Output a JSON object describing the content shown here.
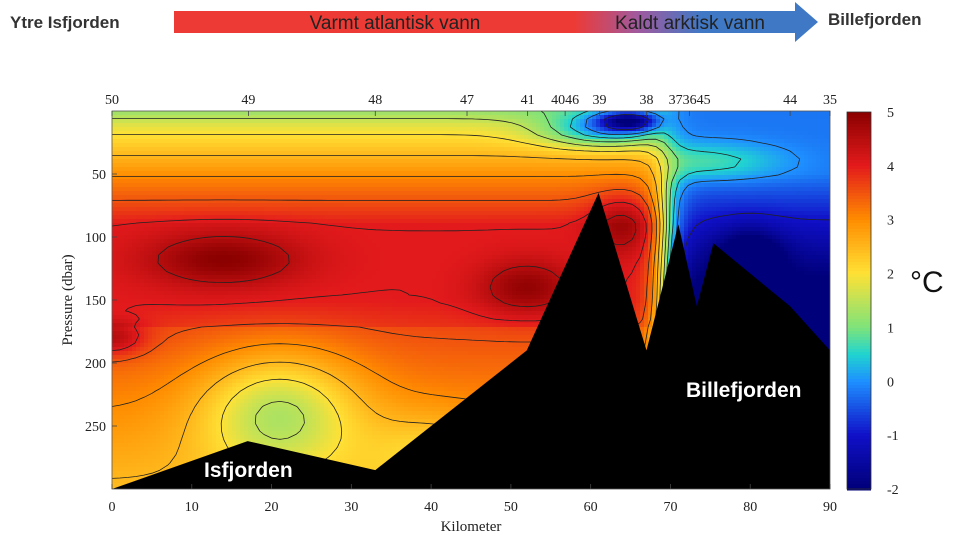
{
  "header": {
    "left_label": "Ytre Isfjorden",
    "right_label": "Billefjorden",
    "arrow_warm_label": "Varmt atlantisk vann",
    "arrow_cold_label": "Kaldt arktisk vann",
    "colors": {
      "warm": "#ee3a34",
      "cold": "#3f79c6"
    }
  },
  "overlays": {
    "left_basin_label": "Isfjorden",
    "right_basin_label": "Billefjorden"
  },
  "colorbar": {
    "unit_label": "°C",
    "ticks": [
      "5",
      "4",
      "3",
      "2",
      "1",
      "0",
      "-1",
      "-2"
    ],
    "stops": [
      {
        "value": 5,
        "color": "#8b0000"
      },
      {
        "value": 4,
        "color": "#e31a1c"
      },
      {
        "value": 3,
        "color": "#ff8c00"
      },
      {
        "value": 2,
        "color": "#ffe135"
      },
      {
        "value": 1,
        "color": "#7fe37a"
      },
      {
        "value": 0.5,
        "color": "#20d4d0"
      },
      {
        "value": 0,
        "color": "#1e90ff"
      },
      {
        "value": -1,
        "color": "#1010c8"
      },
      {
        "value": -2,
        "color": "#00007a"
      }
    ]
  },
  "chart_data": {
    "type": "heatmap",
    "title": "",
    "xlabel": "Kilometer",
    "ylabel": "Pressure (dbar)",
    "xlim": [
      0,
      90
    ],
    "ylim": [
      0,
      300
    ],
    "x_ticks": [
      0,
      10,
      20,
      30,
      40,
      50,
      60,
      70,
      80,
      90
    ],
    "y_ticks": [
      50,
      100,
      150,
      200,
      250
    ],
    "color_range": [
      -2,
      5
    ],
    "station_labels": [
      {
        "label": "50",
        "km": 0
      },
      {
        "label": "49",
        "km": 17.1
      },
      {
        "label": "48",
        "km": 33.0
      },
      {
        "label": "47",
        "km": 44.5
      },
      {
        "label": "41",
        "km": 52.1
      },
      {
        "label": "4046",
        "km": 56.8
      },
      {
        "label": "39",
        "km": 61.1
      },
      {
        "label": "38",
        "km": 67.0
      },
      {
        "label": "373645",
        "km": 72.4
      },
      {
        "label": "44",
        "km": 85.0
      },
      {
        "label": "35",
        "km": 90.0
      }
    ],
    "bathymetry": [
      [
        0,
        300
      ],
      [
        17,
        262
      ],
      [
        33,
        285
      ],
      [
        52,
        190
      ],
      [
        61,
        65
      ],
      [
        67,
        190
      ],
      [
        71,
        90
      ],
      [
        73.3,
        155
      ],
      [
        75.4,
        105
      ],
      [
        85,
        155
      ],
      [
        90,
        190
      ]
    ],
    "contour_levels": [
      -1,
      0,
      0.5,
      1,
      1.5,
      2,
      2.5,
      3,
      3.5,
      4,
      4.5
    ]
  }
}
